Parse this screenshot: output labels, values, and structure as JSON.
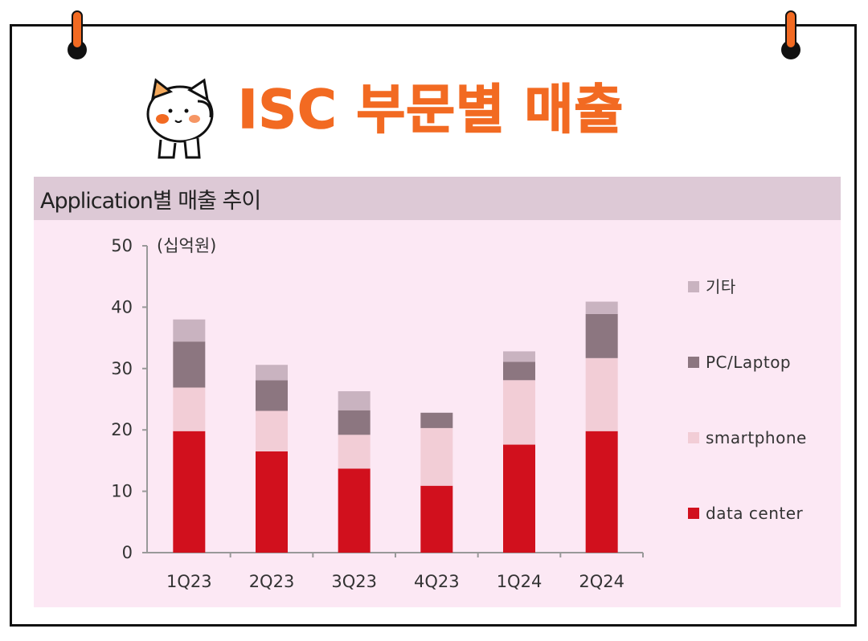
{
  "header": {
    "title": "ISC 부문별 매출"
  },
  "panel": {
    "heading": "Application별 매출 추이"
  },
  "colors": {
    "title": "#f26a22",
    "panel_header": "#ddc9d6",
    "panel_bg": "#fce8f4"
  },
  "chart_data": {
    "type": "bar",
    "stacked": true,
    "unit_label": "(십억원)",
    "categories": [
      "1Q23",
      "2Q23",
      "3Q23",
      "4Q23",
      "1Q24",
      "2Q24"
    ],
    "ylim": [
      0,
      50
    ],
    "yticks": [
      0,
      10,
      20,
      30,
      40,
      50
    ],
    "series": [
      {
        "name": "data center",
        "color": "#d1101d",
        "values": [
          19.8,
          16.5,
          13.7,
          10.9,
          17.6,
          19.8
        ]
      },
      {
        "name": "smartphone",
        "color": "#f2cdd6",
        "values": [
          7.1,
          6.6,
          5.5,
          9.4,
          10.5,
          11.9
        ]
      },
      {
        "name": "PC/Laptop",
        "color": "#8c7680",
        "values": [
          7.5,
          5.0,
          4.0,
          2.5,
          3.0,
          7.2
        ]
      },
      {
        "name": "기타",
        "color": "#c9b3c0",
        "values": [
          3.6,
          2.5,
          3.1,
          0,
          1.7,
          2.0
        ]
      }
    ],
    "legend_position": "right"
  }
}
